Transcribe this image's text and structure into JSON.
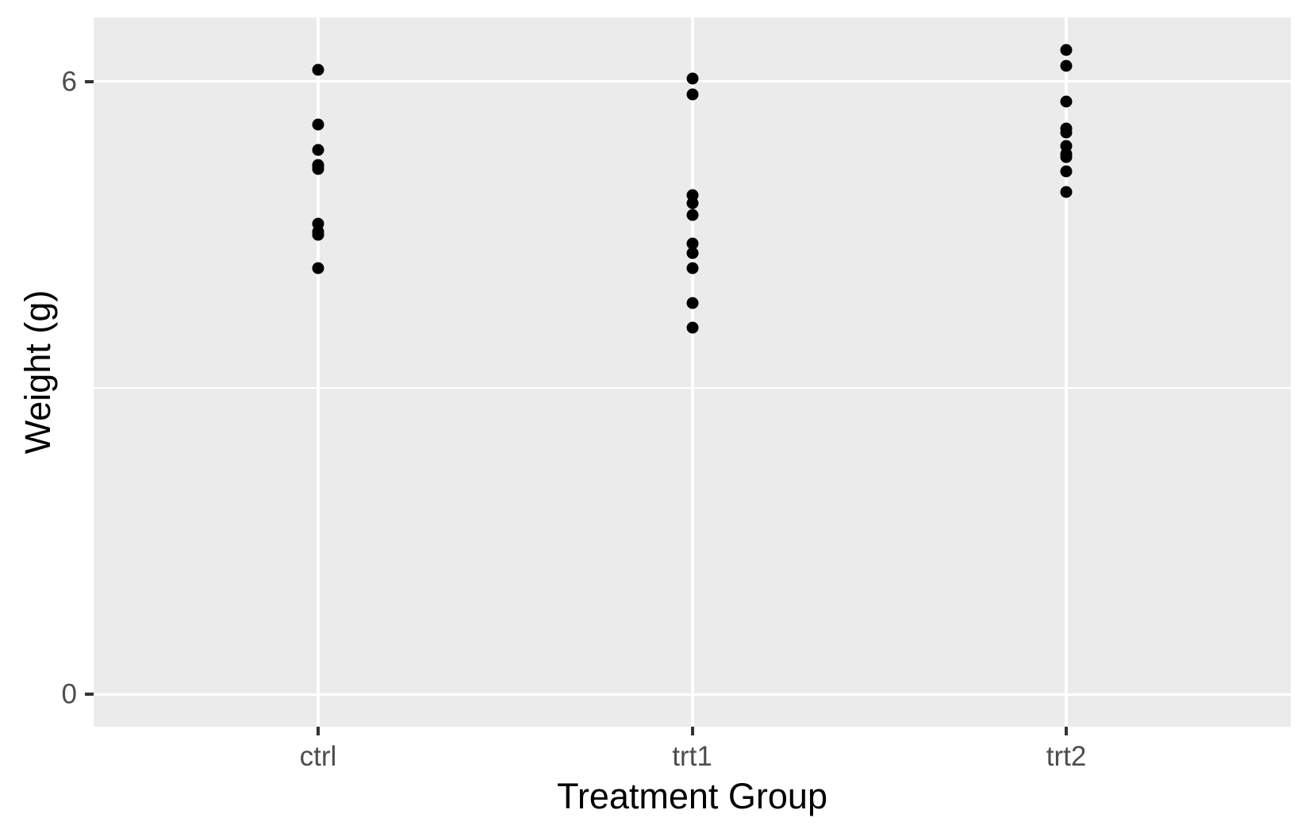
{
  "chart_data": {
    "type": "scatter",
    "title": "",
    "xlabel": "Treatment Group",
    "ylabel": "Weight (g)",
    "categories": [
      "ctrl",
      "trt1",
      "trt2"
    ],
    "series": [
      {
        "name": "ctrl",
        "values": [
          4.17,
          5.58,
          5.18,
          6.11,
          4.5,
          4.61,
          5.17,
          4.53,
          5.33,
          5.14
        ]
      },
      {
        "name": "trt1",
        "values": [
          4.81,
          4.17,
          4.41,
          3.59,
          5.87,
          3.83,
          6.03,
          4.89,
          4.32,
          4.69
        ]
      },
      {
        "name": "trt2",
        "values": [
          6.31,
          5.12,
          5.54,
          5.5,
          5.37,
          5.29,
          4.92,
          6.15,
          5.8,
          5.26
        ]
      }
    ],
    "y_major_ticks": [
      0,
      6
    ],
    "y_tick_labels": [
      "0",
      "6"
    ],
    "y_minor_ticks": [
      3
    ],
    "ylim": [
      -0.3155,
      6.6255
    ],
    "grid": "on",
    "legend": "none",
    "colors": {
      "point": "#000000",
      "panel_background": "#EBEBEB",
      "gridline": "#FFFFFF",
      "axis_text": "#4D4D4D",
      "tick_mark": "#333333",
      "axis_title": "#000000",
      "page_background": "#FFFFFF"
    }
  }
}
